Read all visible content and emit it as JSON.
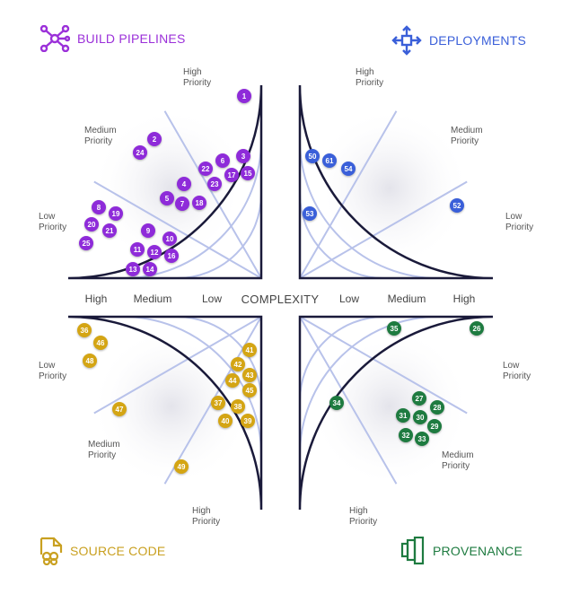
{
  "colors": {
    "build": "#8e2bd9",
    "deploy": "#3a5fd9",
    "source": "#d4a514",
    "prov": "#1e7b40",
    "frame": "#1a1a3a",
    "grid": "#b8c2ea"
  },
  "titles": {
    "build": "BUILD PIPELINES",
    "deploy": "DEPLOYMENTS",
    "source": "SOURCE CODE",
    "prov": "PROVENANCE"
  },
  "axis": {
    "left": [
      "High",
      "Medium",
      "Low"
    ],
    "center": "COMPLEXITY",
    "right": [
      "Low",
      "Medium",
      "High"
    ]
  },
  "priority": {
    "high": "High\nPriority",
    "medium": "Medium\nPriority",
    "low": "Low\nPriority"
  },
  "quadrants": {
    "build": [
      "1",
      "2",
      "24",
      "3",
      "6",
      "22",
      "17",
      "15",
      "23",
      "4",
      "5",
      "7",
      "18",
      "8",
      "19",
      "20",
      "21",
      "25",
      "9",
      "10",
      "11",
      "12",
      "16",
      "13",
      "14"
    ],
    "deploy": [
      "50",
      "61",
      "54",
      "53",
      "52"
    ],
    "source": [
      "36",
      "46",
      "48",
      "47",
      "41",
      "42",
      "43",
      "44",
      "45",
      "37",
      "38",
      "40",
      "39",
      "49"
    ],
    "prov": [
      "35",
      "26",
      "34",
      "27",
      "28",
      "31",
      "30",
      "29",
      "32",
      "33"
    ]
  }
}
